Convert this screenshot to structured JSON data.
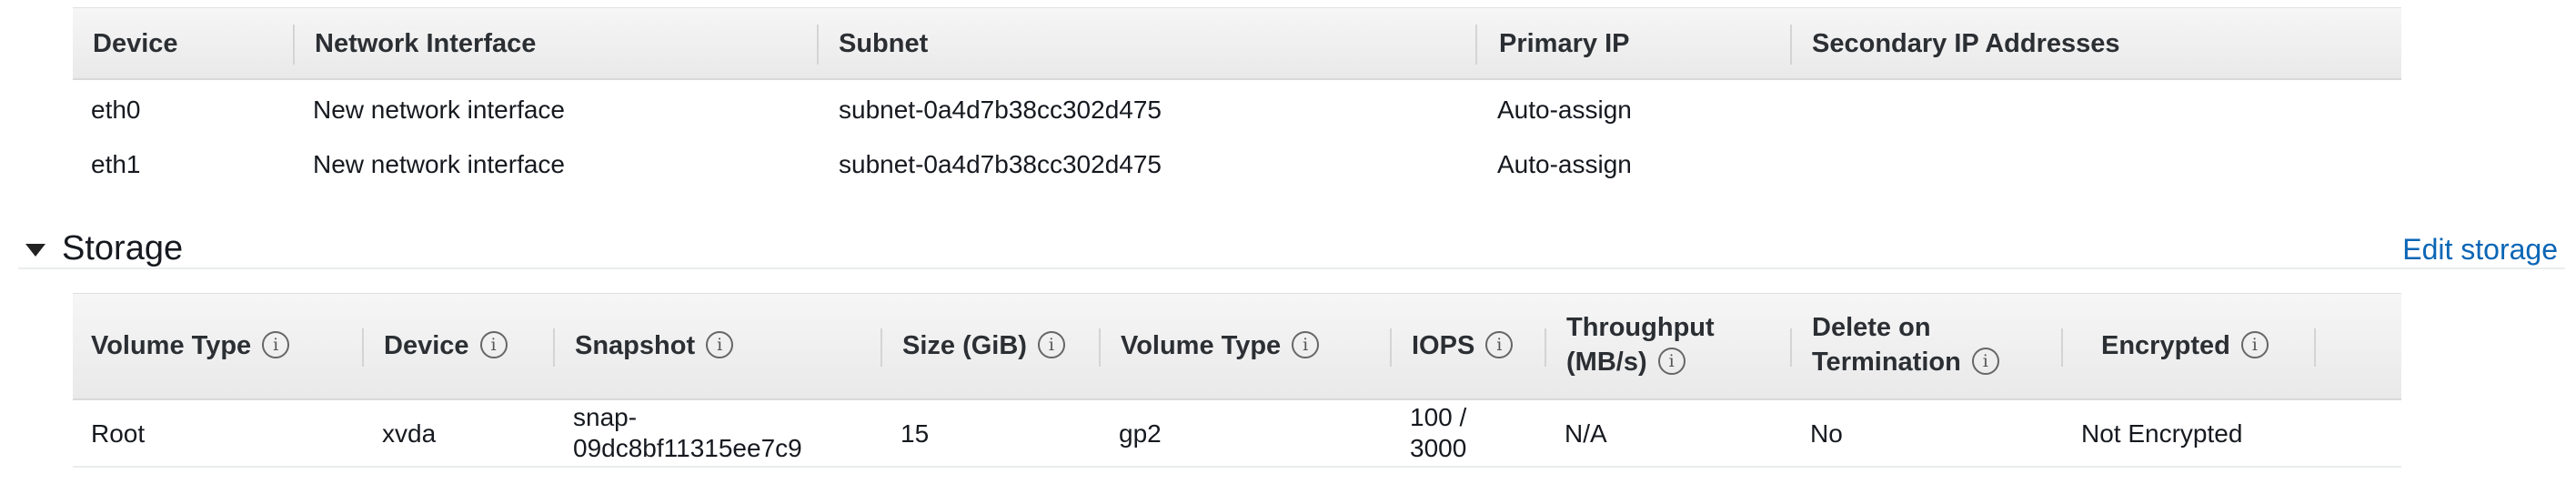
{
  "network": {
    "headers": {
      "device": "Device",
      "network_interface": "Network Interface",
      "subnet": "Subnet",
      "primary_ip": "Primary IP",
      "secondary_ip": "Secondary IP Addresses"
    },
    "rows": [
      {
        "device": "eth0",
        "network_interface": "New network interface",
        "subnet": "subnet-0a4d7b38cc302d475",
        "primary_ip": "Auto-assign",
        "secondary_ip": ""
      },
      {
        "device": "eth1",
        "network_interface": "New network interface",
        "subnet": "subnet-0a4d7b38cc302d475",
        "primary_ip": "Auto-assign",
        "secondary_ip": ""
      }
    ]
  },
  "storage": {
    "title": "Storage",
    "edit_link": "Edit storage",
    "headers": {
      "volume_type": "Volume Type",
      "device": "Device",
      "snapshot": "Snapshot",
      "size": "Size (GiB)",
      "volume_type2": "Volume Type",
      "iops": "IOPS",
      "throughput_line1": "Throughput",
      "throughput_line2": "(MB/s)",
      "delete_line1": "Delete on",
      "delete_line2": "Termination",
      "encrypted": "Encrypted"
    },
    "info_glyph": "i",
    "rows": [
      {
        "volume_type": "Root",
        "device": "xvda",
        "snapshot_line1": "snap-",
        "snapshot_line2": "09dc8bf11315ee7c9",
        "size": "15",
        "volume_type2": "gp2",
        "iops_line1": "100 /",
        "iops_line2": "3000",
        "throughput": "N/A",
        "delete_on_termination": "No",
        "encrypted": "Not Encrypted"
      }
    ]
  },
  "icons": {
    "collapse": "caret-down-icon",
    "info": "info-icon"
  },
  "colors": {
    "link": "#0b66b5",
    "header_bg": "#ececec",
    "text": "#16191f"
  }
}
